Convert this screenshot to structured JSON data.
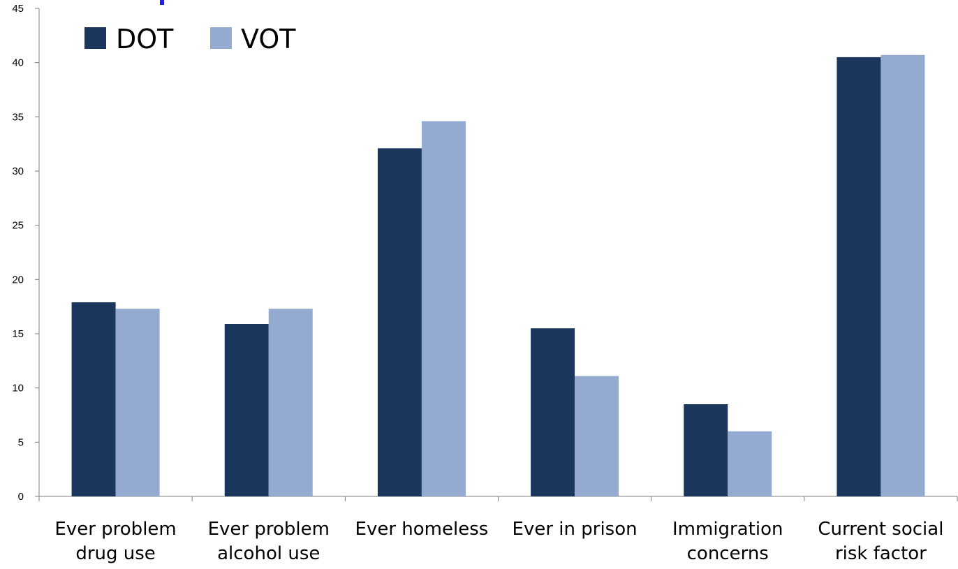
{
  "chart_data": {
    "type": "bar",
    "categories": [
      [
        "Ever problem",
        "drug use"
      ],
      [
        "Ever problem",
        "alcohol use"
      ],
      [
        "Ever homeless"
      ],
      [
        "Ever in prison"
      ],
      [
        "Immigration",
        "concerns"
      ],
      [
        "Current social",
        "risk factor"
      ]
    ],
    "series": [
      {
        "name": "DOT",
        "color": "#1a365d",
        "values": [
          17.9,
          15.9,
          32.1,
          15.5,
          8.5,
          40.5
        ]
      },
      {
        "name": "VOT",
        "color": "#95aad1",
        "values": [
          17.3,
          17.3,
          34.6,
          11.1,
          6.0,
          40.7
        ]
      }
    ],
    "yticks": [
      0,
      5,
      10,
      15,
      20,
      25,
      30,
      35,
      40,
      45
    ],
    "ylim": [
      0,
      45
    ],
    "xlabel": "",
    "ylabel": "",
    "grid": false,
    "legend_position": "top-left"
  }
}
